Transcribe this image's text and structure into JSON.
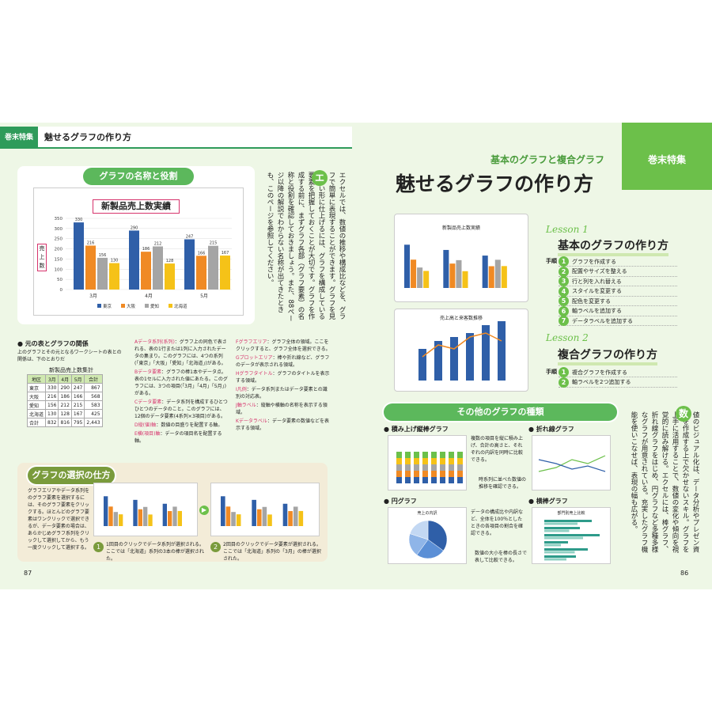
{
  "left": {
    "tag": "巻末特集",
    "tag_title": "魅せるグラフの作り方",
    "sec1": "グラフの名称と役割",
    "chart_title": "新製品売上数実績",
    "ylabel_chars": [
      "売",
      "上",
      "数"
    ],
    "chart_data": {
      "type": "bar",
      "title": "新製品売上数実績",
      "categories": [
        "3月",
        "4月",
        "5月"
      ],
      "series": [
        {
          "name": "東京",
          "values": [
            330,
            290,
            247
          ],
          "color": "#2f5fa8"
        },
        {
          "name": "大阪",
          "values": [
            216,
            186,
            166
          ],
          "color": "#f08a24"
        },
        {
          "name": "愛知",
          "values": [
            156,
            212,
            215
          ],
          "color": "#a5a5a5"
        },
        {
          "name": "北海道",
          "values": [
            130,
            128,
            167
          ],
          "color": "#f5c218"
        }
      ],
      "ylim": [
        0,
        350
      ],
      "yticks": [
        0,
        50,
        100,
        150,
        200,
        250,
        300,
        350
      ]
    },
    "vertical_text": "エクセルでは、数値の推移や構成比などを、グラフで簡単に表現することができます。グラフを見やすい形に仕上げるには、グラフを構成している要素を把握しておくことが大切です。グラフを作成する前に、まずグラフ各部（グラフ要素）の名称と役割を確認しておきましょう。また、88ページ以降の解説でわからない名称が出てきたときも、このページを参照してください。",
    "vertical_badge": "エ",
    "tbl_head": "元の表とグラフの関係",
    "tbl_desc": "上のグラフとその元となるワークシートの表との関係は、下のとおりだ",
    "table": {
      "title": "新製品売上数集計",
      "cols": [
        "地区",
        "3月",
        "4月",
        "5月",
        "合計"
      ],
      "rows": [
        [
          "東京",
          "330",
          "290",
          "247",
          "867"
        ],
        [
          "大阪",
          "216",
          "186",
          "166",
          "568"
        ],
        [
          "愛知",
          "156",
          "212",
          "215",
          "583"
        ],
        [
          "北海道",
          "130",
          "128",
          "167",
          "425"
        ],
        [
          "合計",
          "832",
          "816",
          "795",
          "2,443"
        ]
      ]
    },
    "notes1": [
      {
        "k": "Aデータ系列(系列)",
        "t": "：グラフ上の同色で表される、表の1行または1列に入力されたデータの集まり。このグラフには、4つの系列(「東京」「大阪」「愛知」「北海道」)がある。"
      },
      {
        "k": "Bデータ要素",
        "t": "：グラフの棒1本やデータ点。表の1セルに入力された値にあたる。このグラフには、3つの項目(「3月」「4月」「5月」)がある。"
      },
      {
        "k": "Cデータ要素",
        "t": "：データ系列を構成するひとつひとつのデータのこと。このグラフには、12個のデータ要素(4系列×3項目)がある。"
      },
      {
        "k": "D縦(値)軸",
        "t": "：数値の目盛りを配置する軸。"
      },
      {
        "k": "E横(項目)軸",
        "t": "：データの項目名を配置する軸。"
      }
    ],
    "notes2": [
      {
        "k": "Fグラフエリア",
        "t": "：グラフ全体の領域。ここをクリックすると、グラフ全体を選択できる。"
      },
      {
        "k": "Gプロットエリア",
        "t": "：棒や折れ線など、グラフのデータが表示される領域。"
      },
      {
        "k": "Hグラフタイトル",
        "t": "：グラフのタイトルを表示する領域。"
      },
      {
        "k": "I凡例",
        "t": "：データ系列またはデータ要素との識別の対応表。"
      },
      {
        "k": "J軸ラベル",
        "t": "：縦軸や横軸の名称を表示する領域。"
      },
      {
        "k": "Kデータラベル",
        "t": "：データ要素の数値などを表示する領域。"
      }
    ],
    "sec2": "グラフの選択の仕方",
    "sel_desc": "グラフエリアやデータ系列をのグラフ要素を選択するには、そのグラフ要素をクリックする。ほとんどのグラフ要素はワンクリックで選択できるが、データ要素の場合は、あらかじめグラフ系列をクリックして選択してから、もう一度クリックして選択する。",
    "sel1": "1回目のクリックでデータ系列が選択される。ここでは「北海道」系列の3本の棒が選択された。",
    "sel2": "2回目のクリックでデータ要素が選択される。ここでは「北海道」系列の「3月」の棒が選択された。",
    "page": "87"
  },
  "right": {
    "badge": "巻末特集",
    "subtitle": "基本のグラフと複合グラフ",
    "title": "魅せるグラフの作り方",
    "lesson1_tag": "Lesson 1",
    "lesson1": "基本のグラフの作り方",
    "steps_label": "手順",
    "steps1": [
      "グラフを作成する",
      "配置やサイズを整える",
      "行と列を入れ替える",
      "スタイルを変更する",
      "配色を変更する",
      "軸ラベルを追加する",
      "データラベルを追加する"
    ],
    "lesson2_tag": "Lesson 2",
    "lesson2": "複合グラフの作り方",
    "steps2": [
      "複合グラフを作成する",
      "軸ラベルを2つ追加する"
    ],
    "mini1_title": "新製品売上数実績",
    "mini2_title": "売上高と来客数推移",
    "other_head": "その他のグラフの種類",
    "g1": "積み上げ縦棒グラフ",
    "g1_desc": "複数の項目を縦に積み上げ、合計の高さと、それぞれの内訳を同時に比較できる。",
    "g1_desc2": "時系列に並べた数値の推移を確認できる。",
    "g2": "折れ線グラフ",
    "g3": "円グラフ",
    "g3_desc": "データの構成比や内訳など、全体を100％としたときの各項目の割合を確認できる。",
    "g3_chart": "売上の内訳",
    "g4": "横棒グラフ",
    "g4_desc": "数値の大小を棒の長さで表して比較できる。",
    "g4_chart": "部門別売上比較",
    "vertical_badge": "数",
    "vertical_text": "値のビジュアル化は、データ分析やプレゼン資料を作成する上で欠かせないスキル。グラフを上手に活用することで、数値の変化や傾向を視覚的に読み解ける。エクセルには、棒グラフ、折れ線グラフをはじめ、円グラフなど多種多様なグラフが用意されている。充実したグラフ機能を使いこなせば、表現の幅も広がる。",
    "page": "86"
  }
}
